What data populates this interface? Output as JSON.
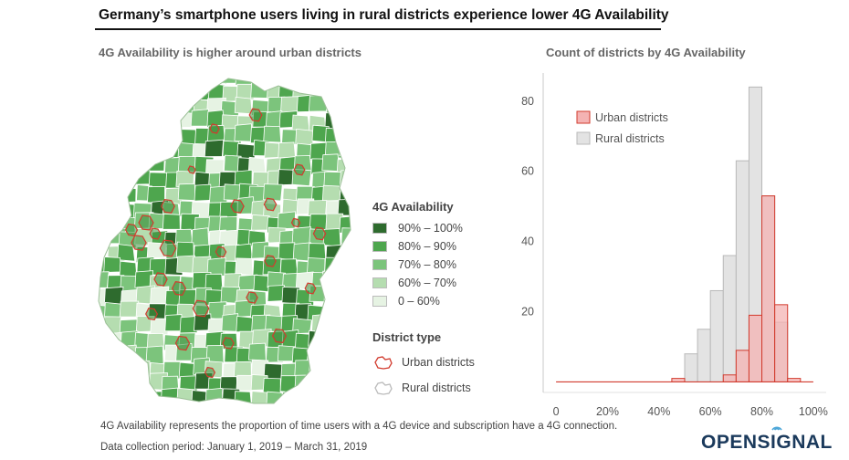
{
  "title": "Germany’s smartphone users living in rural districts experience lower 4G Availability",
  "map": {
    "title": "4G Availability is higher around urban districts",
    "legend_title": "4G Availability",
    "legend": [
      {
        "label": "90% – 100%",
        "color": "#2e6b2e"
      },
      {
        "label": "80% – 90%",
        "color": "#4ea64e"
      },
      {
        "label": "70% – 80%",
        "color": "#7cc47c"
      },
      {
        "label": "60% – 70%",
        "color": "#b5ddb0"
      },
      {
        "label": "0 – 60%",
        "color": "#e6f3e3"
      }
    ],
    "district_type_title": "District type",
    "district_types": [
      {
        "label": "Urban districts",
        "icon": "urban-outline-icon",
        "color": "#d23b2e"
      },
      {
        "label": "Rural districts",
        "icon": "rural-outline-icon",
        "color": "#bbbbbb"
      }
    ]
  },
  "chart_data": {
    "type": "bar",
    "title": "Count of districts by 4G Availability",
    "x_tick_labels": [
      "0",
      "20%",
      "40%",
      "60%",
      "80%",
      "100%"
    ],
    "y_tick_labels": [
      "20",
      "40",
      "60",
      "80"
    ],
    "xlim": [
      -5,
      105
    ],
    "ylim": [
      -3,
      88
    ],
    "bin_width": 5,
    "series": [
      {
        "name": "Rural districts",
        "color": "#e3e3e3",
        "stroke": "#b8b8b8",
        "bins": [
          {
            "x0": 50,
            "count": 8
          },
          {
            "x0": 55,
            "count": 15
          },
          {
            "x0": 60,
            "count": 26
          },
          {
            "x0": 65,
            "count": 36
          },
          {
            "x0": 70,
            "count": 63
          },
          {
            "x0": 75,
            "count": 84
          },
          {
            "x0": 80,
            "count": 53
          },
          {
            "x0": 85,
            "count": 17
          }
        ]
      },
      {
        "name": "Urban districts",
        "color": "#f4b3b3",
        "stroke": "#d23b2e",
        "bins": [
          {
            "x0": 0,
            "count": 0
          },
          {
            "x0": 45,
            "count": 1
          },
          {
            "x0": 65,
            "count": 2
          },
          {
            "x0": 70,
            "count": 9
          },
          {
            "x0": 75,
            "count": 19
          },
          {
            "x0": 80,
            "count": 53
          },
          {
            "x0": 85,
            "count": 22
          },
          {
            "x0": 90,
            "count": 1
          }
        ]
      }
    ],
    "legend_position": "top-left"
  },
  "footnotes": [
    "4G Availability represents the proportion of time users with a 4G device and subscription have a 4G connection.",
    "Data collection period: January 1, 2019 – March 31, 2019"
  ],
  "logo": "OPENSIGNAL"
}
